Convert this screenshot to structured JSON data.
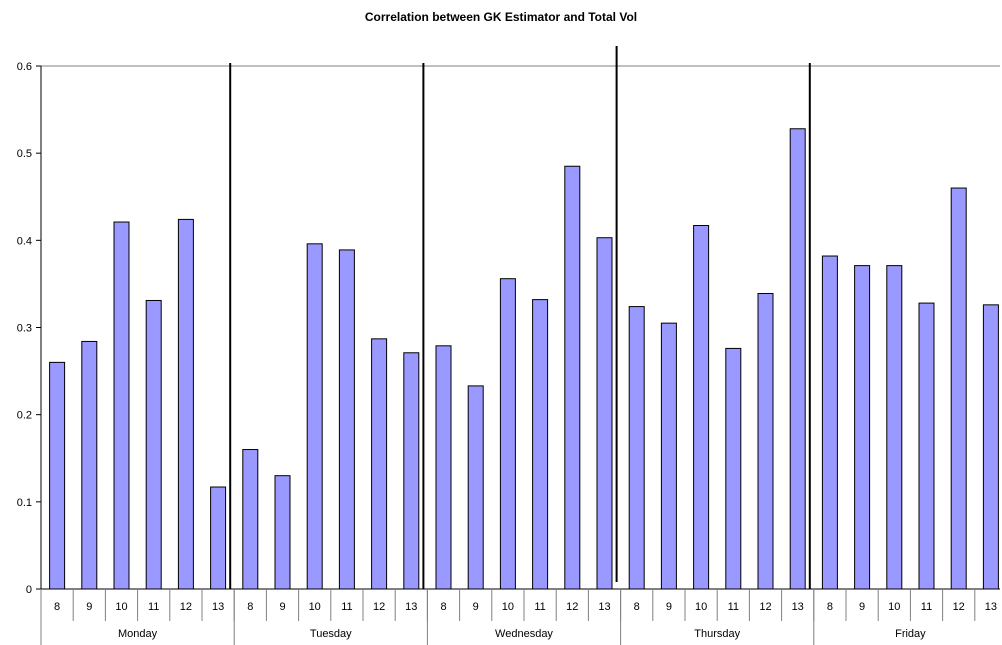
{
  "chart_data": {
    "type": "bar",
    "title": "Correlation between GK Estimator and Total Vol",
    "xlabel": "",
    "ylabel": "",
    "ylim": [
      0,
      0.6
    ],
    "yticks": [
      "0",
      "0.1",
      "0.2",
      "0.3",
      "0.4",
      "0.5",
      "0.6"
    ],
    "grid": "top line only",
    "legend": "none",
    "bar_color": "#9999ff",
    "groups": [
      {
        "label": "Monday",
        "categories": [
          "8",
          "9",
          "10",
          "11",
          "12",
          "13"
        ],
        "values": [
          0.26,
          0.284,
          0.421,
          0.331,
          0.424,
          0.117
        ]
      },
      {
        "label": "Tuesday",
        "categories": [
          "8",
          "9",
          "10",
          "11",
          "12",
          "13"
        ],
        "values": [
          0.16,
          0.13,
          0.396,
          0.389,
          0.287,
          0.271
        ]
      },
      {
        "label": "Wednesday",
        "categories": [
          "8",
          "9",
          "10",
          "11",
          "12",
          "13"
        ],
        "values": [
          0.279,
          0.233,
          0.356,
          0.332,
          0.485,
          0.403
        ]
      },
      {
        "label": "Thursday",
        "categories": [
          "8",
          "9",
          "10",
          "11",
          "12",
          "13"
        ],
        "values": [
          0.324,
          0.305,
          0.417,
          0.276,
          0.339,
          0.528
        ]
      },
      {
        "label": "Friday",
        "categories": [
          "8",
          "9",
          "10",
          "11",
          "12",
          "13"
        ],
        "values": [
          0.382,
          0.371,
          0.371,
          0.328,
          0.46,
          0.326
        ]
      }
    ]
  }
}
